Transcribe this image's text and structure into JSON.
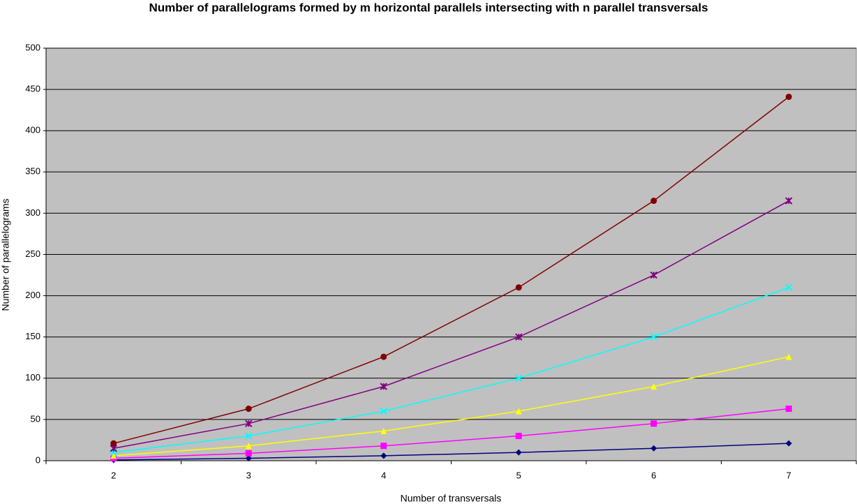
{
  "chart_data": {
    "type": "line",
    "title": "Number of parallelograms formed by m horizontal parallels intersecting with n parallel transversals",
    "x_label": "Number of transversals",
    "y_label": "Number of parallelograms",
    "categories": [
      "2",
      "3",
      "4",
      "5",
      "6",
      "7"
    ],
    "series": [
      {
        "color": "#000080",
        "marker": "diamond",
        "values": [
          1,
          3,
          6,
          10,
          15,
          21
        ]
      },
      {
        "color": "#ff00ff",
        "marker": "square",
        "values": [
          3,
          9,
          18,
          30,
          45,
          63
        ]
      },
      {
        "color": "#ffff00",
        "marker": "triangle",
        "values": [
          6,
          18,
          36,
          60,
          90,
          126
        ]
      },
      {
        "color": "#00ffff",
        "marker": "x",
        "values": [
          10,
          30,
          60,
          100,
          150,
          210
        ]
      },
      {
        "color": "#800080",
        "marker": "star",
        "values": [
          15,
          45,
          90,
          150,
          225,
          315
        ]
      },
      {
        "color": "#800000",
        "marker": "circle",
        "values": [
          21,
          63,
          126,
          210,
          315,
          441
        ]
      }
    ],
    "ylim": [
      0,
      500
    ],
    "yticks": [
      0,
      50,
      100,
      150,
      200,
      250,
      300,
      350,
      400,
      450,
      500
    ],
    "grid": true,
    "plot_background": "#c0c0c0"
  }
}
